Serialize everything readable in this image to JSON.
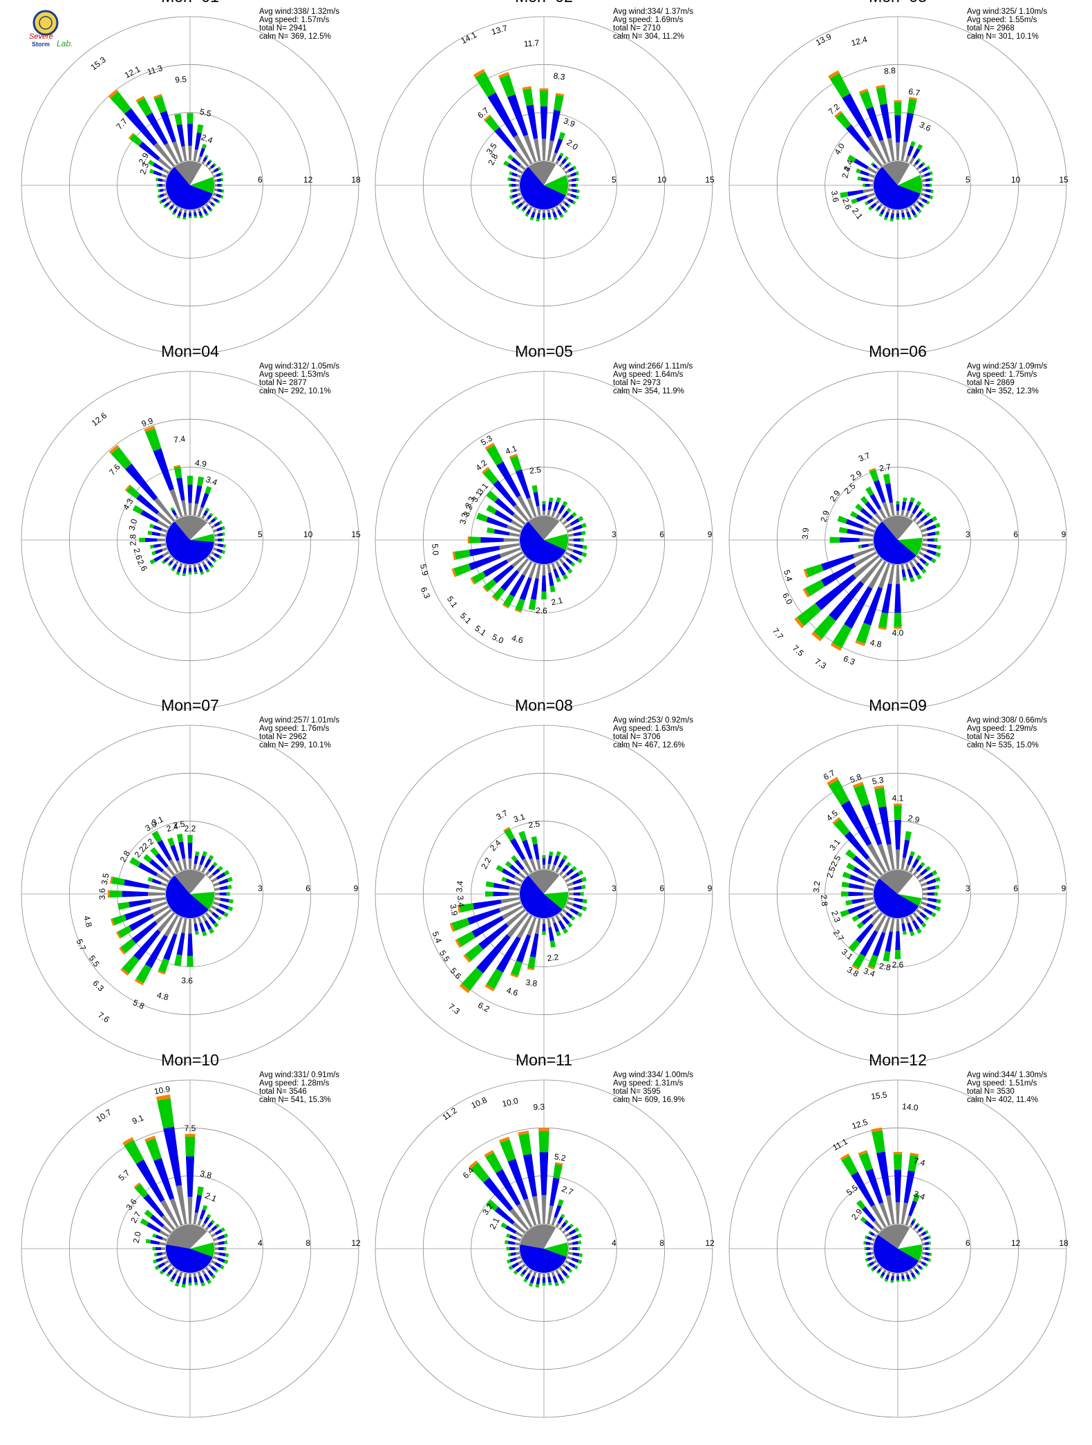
{
  "logo": {
    "line1": "Severe",
    "line2": "Storm",
    "line3": "Lab.",
    "ring_color": "#1a3d8f",
    "fill_color": "#f2d24b"
  },
  "colors": {
    "gray": "#808080",
    "blue": "#0000ee",
    "green": "#00cc00",
    "orange": "#ff8000",
    "ring": "#888888"
  },
  "chart_data": [
    {
      "type": "polar-bar",
      "title": "Mon=01",
      "info": [
        "Avg wind:338/ 1.32m/s",
        "Avg speed: 1.57m/s",
        "total N=    2941",
        "calm N=   369,  12.5%"
      ],
      "rmax": 18,
      "ticks": [
        6,
        12,
        18
      ],
      "pie": [
        {
          "c": "gray",
          "from": -40,
          "to": 30
        },
        {
          "c": "white",
          "from": 30,
          "to": 70
        },
        {
          "c": "green",
          "from": 70,
          "to": 110
        },
        {
          "c": "blue",
          "from": 110,
          "to": 320
        }
      ],
      "labels": [
        {
          "d": -37,
          "v": "15.3"
        },
        {
          "d": -27,
          "v": "12.1"
        },
        {
          "d": -17,
          "v": "11.3"
        },
        {
          "d": -5,
          "v": "9.5"
        },
        {
          "d": 12,
          "v": "5.5"
        },
        {
          "d": 20,
          "v": "2.4"
        },
        {
          "d": -48,
          "v": "7.7"
        },
        {
          "d": -60,
          "v": "2.9"
        },
        {
          "d": -70,
          "v": "2.3"
        }
      ]
    },
    {
      "type": "polar-bar",
      "title": "Mon=02",
      "info": [
        "Avg wind:334/ 1.37m/s",
        "Avg speed: 1.69m/s",
        "total N=    2710",
        "calm N=   304,  11.2%"
      ],
      "rmax": 15,
      "ticks": [
        5,
        10,
        15
      ],
      "pie": [
        {
          "c": "gray",
          "from": -40,
          "to": 30
        },
        {
          "c": "white",
          "from": 30,
          "to": 65
        },
        {
          "c": "green",
          "from": 65,
          "to": 115
        },
        {
          "c": "blue",
          "from": 115,
          "to": 320
        }
      ],
      "labels": [
        {
          "d": -27,
          "v": "14.1"
        },
        {
          "d": -16,
          "v": "13.7"
        },
        {
          "d": -5,
          "v": "11.7"
        },
        {
          "d": 8,
          "v": "8.3"
        },
        {
          "d": 22,
          "v": "3.9"
        },
        {
          "d": 35,
          "v": "2.0"
        },
        {
          "d": -40,
          "v": "6.7"
        },
        {
          "d": -55,
          "v": "3.5"
        },
        {
          "d": -63,
          "v": "2.8"
        }
      ]
    },
    {
      "type": "polar-bar",
      "title": "Mon=03",
      "info": [
        "Avg wind:325/ 1.10m/s",
        "Avg speed: 1.55m/s",
        "total N=    2968",
        "calm N=   301,  10.1%"
      ],
      "rmax": 15,
      "ticks": [
        5,
        10,
        15
      ],
      "pie": [
        {
          "c": "gray",
          "from": -40,
          "to": 30
        },
        {
          "c": "white",
          "from": 30,
          "to": 65
        },
        {
          "c": "green",
          "from": 65,
          "to": 110
        },
        {
          "c": "blue",
          "from": 110,
          "to": 320
        }
      ],
      "labels": [
        {
          "d": -27,
          "v": "13.9"
        },
        {
          "d": -15,
          "v": "12.4"
        },
        {
          "d": -4,
          "v": "8.8"
        },
        {
          "d": 10,
          "v": "6.7"
        },
        {
          "d": 25,
          "v": "3.6"
        },
        {
          "d": -40,
          "v": "7.2"
        },
        {
          "d": -58,
          "v": "4.0"
        },
        {
          "d": -68,
          "v": "2.4"
        },
        {
          "d": -76,
          "v": "2.4"
        },
        {
          "d": -100,
          "v": "3.6"
        },
        {
          "d": -110,
          "v": "2.6"
        },
        {
          "d": -125,
          "v": "2.1"
        }
      ]
    },
    {
      "type": "polar-bar",
      "title": "Mon=04",
      "info": [
        "Avg wind:312/ 1.05m/s",
        "Avg speed: 1.53m/s",
        "total N=    2877",
        "calm N=   292,  10.1%"
      ],
      "rmax": 15,
      "ticks": [
        5,
        10,
        15
      ],
      "pie": [
        {
          "c": "gray",
          "from": -40,
          "to": 45
        },
        {
          "c": "white",
          "from": 45,
          "to": 75
        },
        {
          "c": "green",
          "from": 75,
          "to": 95
        },
        {
          "c": "blue",
          "from": 95,
          "to": 320
        }
      ],
      "labels": [
        {
          "d": -37,
          "v": "12.6"
        },
        {
          "d": -20,
          "v": "9.9"
        },
        {
          "d": -6,
          "v": "7.4"
        },
        {
          "d": 8,
          "v": "4.9"
        },
        {
          "d": 20,
          "v": "3.4"
        },
        {
          "d": -47,
          "v": "7.6"
        },
        {
          "d": -60,
          "v": "4.3"
        },
        {
          "d": -75,
          "v": "3.0"
        },
        {
          "d": -90,
          "v": "2.8"
        },
        {
          "d": -105,
          "v": "2.6"
        },
        {
          "d": -118,
          "v": "2.6"
        }
      ]
    },
    {
      "type": "polar-bar",
      "title": "Mon=05",
      "info": [
        "Avg wind:266/ 1.11m/s",
        "Avg speed: 1.64m/s",
        "total N=    2973",
        "calm N=   354,  11.9%"
      ],
      "rmax": 9,
      "ticks": [
        3,
        6,
        9
      ],
      "pie": [
        {
          "c": "gray",
          "from": -40,
          "to": 40
        },
        {
          "c": "white",
          "from": 40,
          "to": 75
        },
        {
          "c": "green",
          "from": 75,
          "to": 115
        },
        {
          "c": "blue",
          "from": 115,
          "to": 320
        }
      ],
      "labels": [
        {
          "d": -30,
          "v": "5.3"
        },
        {
          "d": -20,
          "v": "4.1"
        },
        {
          "d": -7,
          "v": "2.5"
        },
        {
          "d": -40,
          "v": "4.2"
        },
        {
          "d": -50,
          "v": "3.1"
        },
        {
          "d": -57,
          "v": "3.1"
        },
        {
          "d": -63,
          "v": "3.3"
        },
        {
          "d": -69,
          "v": "3.2"
        },
        {
          "d": -75,
          "v": "3.3"
        },
        {
          "d": -95,
          "v": "5.0"
        },
        {
          "d": -104,
          "v": "5.9"
        },
        {
          "d": -114,
          "v": "6.3"
        },
        {
          "d": -124,
          "v": "5.1"
        },
        {
          "d": -135,
          "v": "5.1"
        },
        {
          "d": -145,
          "v": "5.1"
        },
        {
          "d": -155,
          "v": "5.0"
        },
        {
          "d": -165,
          "v": "4.6"
        },
        {
          "d": -178,
          "v": "2.6"
        },
        {
          "d": 168,
          "v": "2.1"
        }
      ]
    },
    {
      "type": "polar-bar",
      "title": "Mon=06",
      "info": [
        "Avg wind:253/ 1.09m/s",
        "Avg speed: 1.75m/s",
        "total N=    2869",
        "calm N=   352,  12.3%"
      ],
      "rmax": 9,
      "ticks": [
        3,
        6,
        9
      ],
      "pie": [
        {
          "c": "gray",
          "from": -40,
          "to": 40
        },
        {
          "c": "white",
          "from": 40,
          "to": 85
        },
        {
          "c": "green",
          "from": 85,
          "to": 130
        },
        {
          "c": "blue",
          "from": 130,
          "to": 320
        }
      ],
      "labels": [
        {
          "d": -22,
          "v": "3.7"
        },
        {
          "d": -10,
          "v": "2.7"
        },
        {
          "d": -33,
          "v": "2.9"
        },
        {
          "d": -43,
          "v": "2.5"
        },
        {
          "d": -55,
          "v": "2.9"
        },
        {
          "d": -72,
          "v": "2.9"
        },
        {
          "d": -86,
          "v": "3.9"
        },
        {
          "d": -108,
          "v": "5.4"
        },
        {
          "d": -118,
          "v": "6.0"
        },
        {
          "d": -128,
          "v": "7.7"
        },
        {
          "d": -138,
          "v": "7.5"
        },
        {
          "d": -148,
          "v": "7.3"
        },
        {
          "d": -158,
          "v": "6.3"
        },
        {
          "d": -168,
          "v": "4.8"
        },
        {
          "d": -180,
          "v": "4.0"
        }
      ]
    },
    {
      "type": "polar-bar",
      "title": "Mon=07",
      "info": [
        "Avg wind:257/ 1.01m/s",
        "Avg speed: 1.76m/s",
        "total N=    2962",
        "calm N=   299,  10.1%"
      ],
      "rmax": 9,
      "ticks": [
        3,
        6,
        9
      ],
      "pie": [
        {
          "c": "gray",
          "from": -40,
          "to": 40
        },
        {
          "c": "white",
          "from": 40,
          "to": 85
        },
        {
          "c": "green",
          "from": 85,
          "to": 130
        },
        {
          "c": "blue",
          "from": 130,
          "to": 320
        }
      ],
      "labels": [
        {
          "d": -30,
          "v": "3.0"
        },
        {
          "d": -24,
          "v": "3.1"
        },
        {
          "d": -15,
          "v": "2.4"
        },
        {
          "d": -9,
          "v": "2.5"
        },
        {
          "d": 0,
          "v": "2.2"
        },
        {
          "d": -40,
          "v": "2.2"
        },
        {
          "d": -50,
          "v": "2.2"
        },
        {
          "d": -60,
          "v": "2.8"
        },
        {
          "d": -80,
          "v": "3.5"
        },
        {
          "d": -90,
          "v": "3.6"
        },
        {
          "d": -105,
          "v": "4.8"
        },
        {
          "d": -115,
          "v": "5.7"
        },
        {
          "d": -125,
          "v": "5.5"
        },
        {
          "d": -135,
          "v": "6.3"
        },
        {
          "d": -145,
          "v": "7.6"
        },
        {
          "d": -155,
          "v": "5.8"
        },
        {
          "d": -165,
          "v": "4.8"
        },
        {
          "d": -178,
          "v": "3.6"
        }
      ]
    },
    {
      "type": "polar-bar",
      "title": "Mon=08",
      "info": [
        "Avg wind:253/ 0.92m/s",
        "Avg speed: 1.63m/s",
        "total N=    3706",
        "calm N=   467,  12.6%"
      ],
      "rmax": 9,
      "ticks": [
        3,
        6,
        9
      ],
      "pie": [
        {
          "c": "gray",
          "from": -40,
          "to": 40
        },
        {
          "c": "white",
          "from": 40,
          "to": 85
        },
        {
          "c": "green",
          "from": 85,
          "to": 130
        },
        {
          "c": "blue",
          "from": 130,
          "to": 320
        }
      ],
      "labels": [
        {
          "d": -28,
          "v": "3.7"
        },
        {
          "d": -18,
          "v": "3.1"
        },
        {
          "d": -8,
          "v": "2.5"
        },
        {
          "d": -45,
          "v": "2.4"
        },
        {
          "d": -62,
          "v": "2.2"
        },
        {
          "d": -85,
          "v": "3.4"
        },
        {
          "d": -95,
          "v": "3.4"
        },
        {
          "d": -100,
          "v": "3.9"
        },
        {
          "d": -112,
          "v": "5.4"
        },
        {
          "d": -122,
          "v": "5.5"
        },
        {
          "d": -132,
          "v": "5.6"
        },
        {
          "d": -142,
          "v": "7.3"
        },
        {
          "d": -152,
          "v": "6.2"
        },
        {
          "d": -162,
          "v": "4.6"
        },
        {
          "d": -172,
          "v": "3.8"
        },
        {
          "d": 172,
          "v": "2.2"
        }
      ]
    },
    {
      "type": "polar-bar",
      "title": "Mon=09",
      "info": [
        "Avg wind:308/ 0.66m/s",
        "Avg speed: 1.29m/s",
        "total N=    3562",
        "calm N=   535,  15.0%"
      ],
      "rmax": 9,
      "ticks": [
        3,
        6,
        9
      ],
      "pie": [
        {
          "c": "gray",
          "from": -50,
          "to": 40
        },
        {
          "c": "white",
          "from": 40,
          "to": 100
        },
        {
          "c": "green",
          "from": 100,
          "to": 120
        },
        {
          "c": "blue",
          "from": 120,
          "to": 310
        }
      ],
      "labels": [
        {
          "d": -30,
          "v": "6.7"
        },
        {
          "d": -20,
          "v": "5.8"
        },
        {
          "d": -10,
          "v": "5.3"
        },
        {
          "d": 0,
          "v": "4.1"
        },
        {
          "d": 12,
          "v": "2.9"
        },
        {
          "d": -40,
          "v": "4.5"
        },
        {
          "d": -52,
          "v": "3.1"
        },
        {
          "d": -62,
          "v": "2.5"
        },
        {
          "d": -72,
          "v": "2.5"
        },
        {
          "d": -85,
          "v": "3.2"
        },
        {
          "d": -95,
          "v": "2.8"
        },
        {
          "d": -110,
          "v": "2.3"
        },
        {
          "d": -125,
          "v": "2.7"
        },
        {
          "d": -140,
          "v": "3.1"
        },
        {
          "d": -150,
          "v": "3.8"
        },
        {
          "d": -160,
          "v": "3.4"
        },
        {
          "d": -170,
          "v": "2.8"
        },
        {
          "d": -180,
          "v": "2.6"
        }
      ]
    },
    {
      "type": "polar-bar",
      "title": "Mon=10",
      "info": [
        "Avg wind:331/ 0.91m/s",
        "Avg speed: 1.28m/s",
        "total N=    3546",
        "calm N=   541,  15.3%"
      ],
      "rmax": 12,
      "ticks": [
        4,
        8,
        12
      ],
      "pie": [
        {
          "c": "gray",
          "from": -80,
          "to": 45
        },
        {
          "c": "white",
          "from": 45,
          "to": 75
        },
        {
          "c": "green",
          "from": 75,
          "to": 110
        },
        {
          "c": "blue",
          "from": 110,
          "to": 280
        }
      ],
      "labels": [
        {
          "d": -33,
          "v": "10.7"
        },
        {
          "d": -22,
          "v": "9.1"
        },
        {
          "d": -10,
          "v": "10.9"
        },
        {
          "d": 0,
          "v": "7.5"
        },
        {
          "d": 12,
          "v": "3.8"
        },
        {
          "d": 22,
          "v": "2.1"
        },
        {
          "d": -42,
          "v": "5.7"
        },
        {
          "d": -53,
          "v": "3.6"
        },
        {
          "d": -60,
          "v": "2.7"
        },
        {
          "d": -78,
          "v": "2.0"
        }
      ]
    },
    {
      "type": "polar-bar",
      "title": "Mon=11",
      "info": [
        "Avg wind:334/ 1.00m/s",
        "Avg speed: 1.31m/s",
        "total N=    3595",
        "calm N=   609,  16.9%"
      ],
      "rmax": 12,
      "ticks": [
        4,
        8,
        12
      ],
      "pie": [
        {
          "c": "gray",
          "from": -80,
          "to": 30
        },
        {
          "c": "white",
          "from": 30,
          "to": 75
        },
        {
          "c": "green",
          "from": 75,
          "to": 110
        },
        {
          "c": "blue",
          "from": 110,
          "to": 280
        }
      ],
      "labels": [
        {
          "d": -35,
          "v": "11.2"
        },
        {
          "d": -24,
          "v": "10.8"
        },
        {
          "d": -13,
          "v": "10.0"
        },
        {
          "d": -2,
          "v": "9.3"
        },
        {
          "d": 10,
          "v": "5.2"
        },
        {
          "d": 22,
          "v": "2.7"
        },
        {
          "d": -45,
          "v": "6.4"
        },
        {
          "d": -55,
          "v": "3.2"
        },
        {
          "d": -63,
          "v": "2.1"
        }
      ]
    },
    {
      "type": "polar-bar",
      "title": "Mon=12",
      "info": [
        "Avg wind:344/ 1.30m/s",
        "Avg speed: 1.51m/s",
        "total N=    3530",
        "calm N=   402,  11.4%"
      ],
      "rmax": 18,
      "ticks": [
        6,
        12,
        18
      ],
      "pie": [
        {
          "c": "gray",
          "from": -55,
          "to": 30
        },
        {
          "c": "white",
          "from": 30,
          "to": 80
        },
        {
          "c": "green",
          "from": 80,
          "to": 120
        },
        {
          "c": "blue",
          "from": 120,
          "to": 305
        }
      ],
      "labels": [
        {
          "d": -29,
          "v": "11.1"
        },
        {
          "d": -17,
          "v": "12.5"
        },
        {
          "d": -7,
          "v": "15.5"
        },
        {
          "d": 5,
          "v": "14.0"
        },
        {
          "d": 14,
          "v": "7.4"
        },
        {
          "d": 22,
          "v": "3.4"
        },
        {
          "d": -38,
          "v": "5.5"
        },
        {
          "d": -50,
          "v": "2.9"
        }
      ]
    }
  ]
}
